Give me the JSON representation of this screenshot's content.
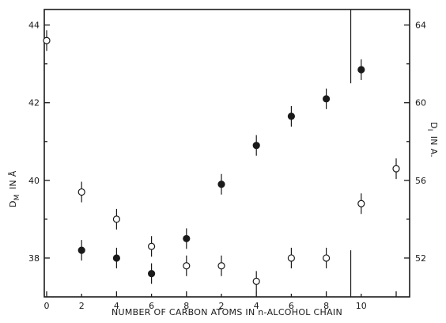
{
  "chart_data": {
    "type": "scatter",
    "xlabel": "NUMBER OF CARBON ATOMS IN n-ALCOHOL CHAIN",
    "ylabel_left_main": "D",
    "ylabel_left_sub": "M",
    "ylabel_left_unit": "IN Å",
    "ylabel_right_main": "D",
    "ylabel_right_sub": "I",
    "ylabel_right_unit": "IN A.",
    "x_tick_labels": [
      "0",
      "2",
      "4",
      "6",
      "8",
      "2",
      "4",
      "6",
      "8",
      "10"
    ],
    "y_left_ticks": [
      "38",
      "40",
      "42",
      "44"
    ],
    "y_left_range": [
      37.0,
      44.4
    ],
    "y_right_ticks": [
      "52",
      "56",
      "60",
      "64"
    ],
    "y_right_range": [
      50.0,
      64.8
    ],
    "grid": false,
    "series": [
      {
        "marker": "open",
        "axis": "left",
        "points": [
          {
            "x": 0,
            "y": 43.6
          },
          {
            "x": 1,
            "y": 39.7
          },
          {
            "x": 2,
            "y": 39.0
          },
          {
            "x": 3,
            "y": 38.3
          },
          {
            "x": 4,
            "y": 37.8
          },
          {
            "x": 5,
            "y": 37.8
          },
          {
            "x": 6,
            "y": 37.4
          },
          {
            "x": 7,
            "y": 38.0
          },
          {
            "x": 8,
            "y": 38.0
          },
          {
            "x": 9,
            "y": 39.4
          },
          {
            "x": 10,
            "y": 40.3
          }
        ]
      },
      {
        "marker": "filled",
        "axis": "right",
        "points": [
          {
            "x": 1,
            "y": 52.4
          },
          {
            "x": 2,
            "y": 52.0
          },
          {
            "x": 3,
            "y": 51.2
          },
          {
            "x": 4,
            "y": 53.0
          },
          {
            "x": 5,
            "y": 55.8
          },
          {
            "x": 6,
            "y": 57.8
          },
          {
            "x": 7,
            "y": 59.3
          },
          {
            "x": 8,
            "y": 60.2
          },
          {
            "x": 9,
            "y": 61.7
          }
        ]
      }
    ]
  }
}
